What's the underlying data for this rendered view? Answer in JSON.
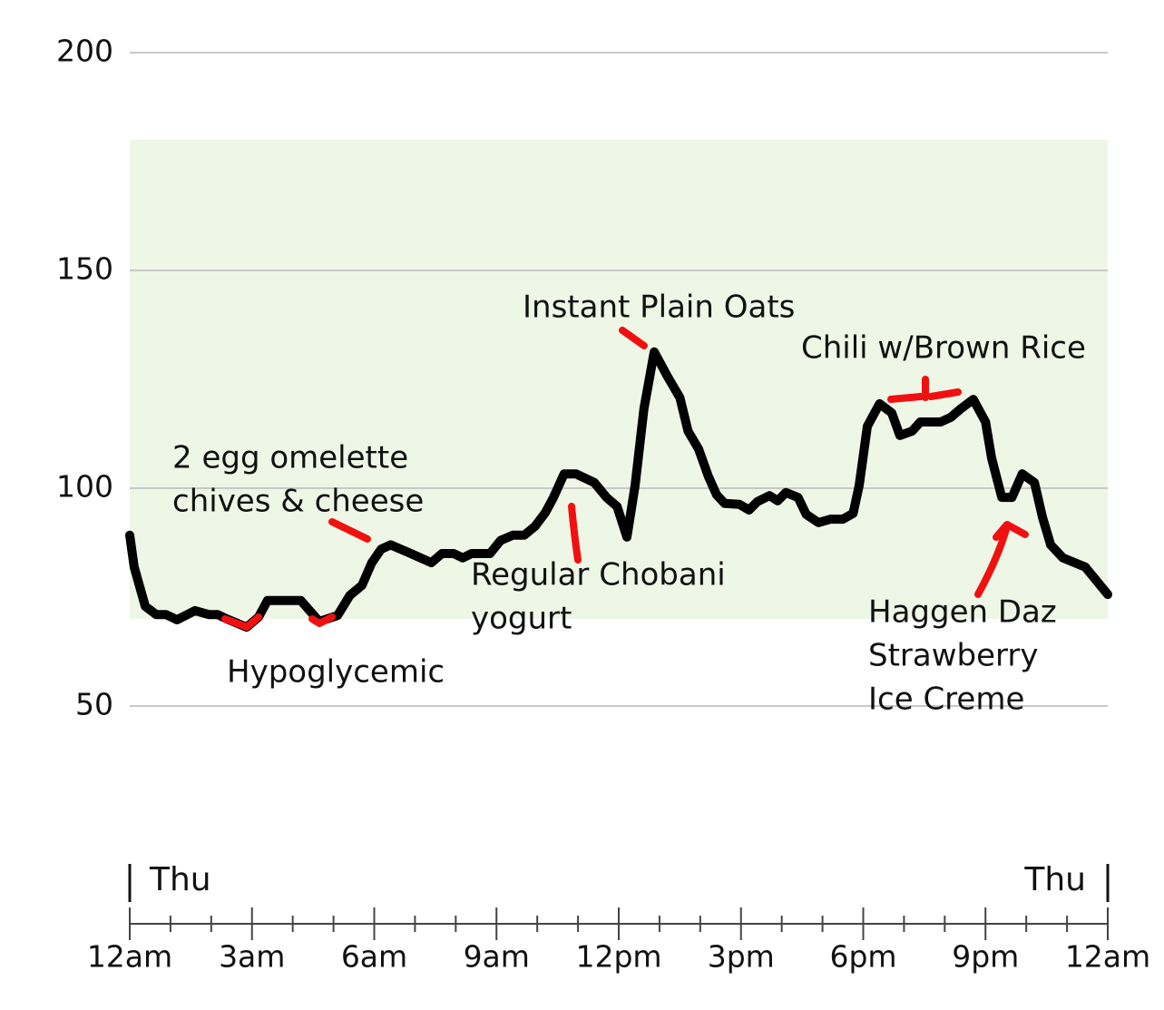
{
  "chart_data": {
    "type": "line",
    "series": [
      {
        "color": "#000000",
        "x": [
          0,
          0.11,
          0.38,
          0.65,
          0.89,
          1.16,
          1.6,
          1.94,
          2.16,
          2.38,
          2.87,
          3.16,
          3.38,
          4.2,
          4.65,
          5.1,
          5.4,
          5.7,
          5.94,
          6.17,
          6.4,
          6.9,
          7.4,
          7.66,
          7.95,
          8.17,
          8.39,
          8.84,
          9.1,
          9.4,
          9.68,
          9.95,
          10.2,
          10.4,
          10.66,
          10.95,
          11.4,
          11.7,
          11.96,
          12.2,
          12.4,
          12.62,
          12.87,
          13.2,
          13.5,
          13.7,
          13.96,
          14.2,
          14.4,
          14.6,
          14.96,
          15.2,
          15.4,
          15.7,
          15.9,
          16.1,
          16.4,
          16.6,
          16.9,
          17.2,
          17.5,
          17.75,
          17.9,
          18.1,
          18.4,
          18.7,
          18.9,
          19.2,
          19.4,
          19.9,
          20.15,
          20.4,
          20.7,
          21.0,
          21.15,
          21.4,
          21.65,
          21.9,
          22.2,
          22.4,
          22.6,
          22.9,
          23.45,
          24
        ],
        "values": [
          89.2,
          81.9,
          72.9,
          71,
          71,
          69.8,
          71.9,
          71,
          71,
          70,
          68.1,
          70.4,
          74.2,
          74.2,
          69.4,
          70.8,
          75.4,
          77.7,
          82.9,
          86,
          87,
          85,
          82.9,
          85,
          85,
          84,
          85,
          85,
          88,
          89.2,
          89.2,
          91.3,
          94.4,
          97.9,
          103.3,
          103.3,
          101.3,
          97.9,
          95.8,
          88.8,
          100.6,
          118.3,
          131.3,
          125.6,
          120.8,
          113.1,
          109,
          102.7,
          98.5,
          96.5,
          96.3,
          95,
          96.9,
          98.3,
          97.1,
          99,
          97.9,
          94,
          92.1,
          92.9,
          92.9,
          94.2,
          100.6,
          114.2,
          119.4,
          117.3,
          112.1,
          113.1,
          115.2,
          115.2,
          116.3,
          118.3,
          120.4,
          115.2,
          106.9,
          97.9,
          97.9,
          103.3,
          101.3,
          93.3,
          87,
          84,
          81.9,
          75.6
        ]
      }
    ],
    "xlim": [
      0,
      24
    ],
    "xticks": [
      {
        "value": 0,
        "label": "12am"
      },
      {
        "value": 3,
        "label": "3am"
      },
      {
        "value": 6,
        "label": "6am"
      },
      {
        "value": 9,
        "label": "9am"
      },
      {
        "value": 12,
        "label": "12pm"
      },
      {
        "value": 15,
        "label": "3pm"
      },
      {
        "value": 18,
        "label": "6pm"
      },
      {
        "value": 21,
        "label": "9pm"
      },
      {
        "value": 24,
        "label": "12am"
      }
    ],
    "xminorticks": [
      1,
      2,
      4,
      5,
      7,
      8,
      10,
      11,
      13,
      14,
      16,
      17,
      19,
      20,
      22,
      23
    ],
    "day_labels": [
      {
        "value": 0,
        "label": "Thu"
      },
      {
        "value": 24,
        "label": "Thu"
      }
    ],
    "ylim": [
      50,
      200
    ],
    "yticks": [
      50,
      100,
      150,
      200
    ],
    "grid": true,
    "target_range": [
      70,
      180
    ],
    "target_color": "#eef6e6",
    "annotations": [
      {
        "text": [
          "2 egg omelette",
          "chives & cheese"
        ]
      },
      {
        "text": [
          "Hypoglycemic"
        ]
      },
      {
        "text": [
          "Regular Chobani",
          "yogurt"
        ]
      },
      {
        "text": [
          "Instant Plain Oats"
        ]
      },
      {
        "text": [
          "Chili w/Brown Rice"
        ]
      },
      {
        "text": [
          "Haggen Daz",
          "Strawberry",
          "Ice Creme"
        ]
      }
    ]
  }
}
